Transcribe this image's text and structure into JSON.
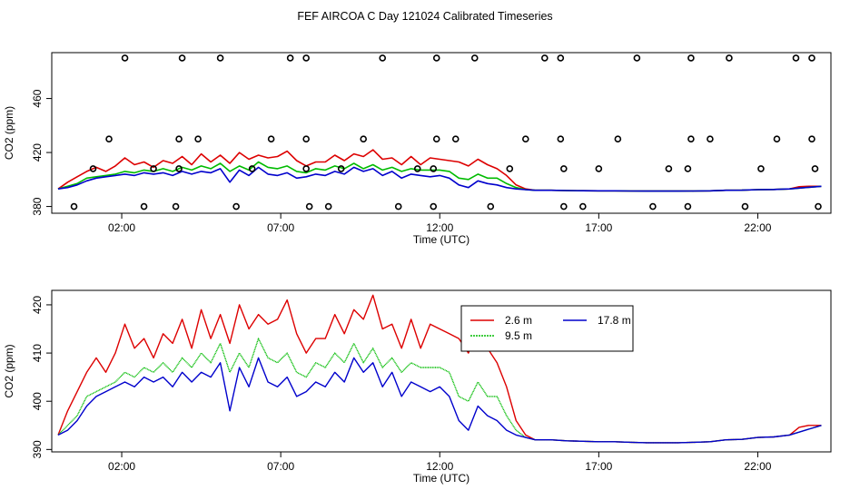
{
  "title": "FEF AIRCOA C  Day 121024  Calibrated Timeseries",
  "colors": {
    "red": "#dd0000",
    "green": "#00bb00",
    "blue": "#0000cc",
    "qc": "#000000"
  },
  "chart_data": [
    {
      "type": "line",
      "panel": "top",
      "xlabel": "Time (UTC)",
      "ylabel": "CO2 (ppm)",
      "x_ticks": [
        2,
        7,
        12,
        17,
        22
      ],
      "x_tick_labels": [
        "02:00",
        "07:00",
        "12:00",
        "17:00",
        "22:00"
      ],
      "xlim": [
        -0.2,
        24.3
      ],
      "ylim": [
        375,
        494
      ],
      "y_ticks": [
        380,
        420,
        460
      ],
      "y_tick_labels": [
        "380",
        "420",
        "460"
      ],
      "grid": false,
      "series": [
        {
          "name": "2.6 m",
          "color": "#dd0000",
          "ref": "red"
        },
        {
          "name": "9.5 m",
          "color": "#00bb00",
          "ref": "green"
        },
        {
          "name": "17.8 m",
          "color": "#0000cc",
          "ref": "blue"
        }
      ],
      "qc_flags": {
        "marker": "open-circle",
        "points": [
          [
            2.1,
            490
          ],
          [
            3.9,
            490
          ],
          [
            5.1,
            490
          ],
          [
            7.3,
            490
          ],
          [
            7.8,
            490
          ],
          [
            10.2,
            490
          ],
          [
            11.9,
            490
          ],
          [
            13.1,
            490
          ],
          [
            15.3,
            490
          ],
          [
            15.8,
            490
          ],
          [
            18.2,
            490
          ],
          [
            19.9,
            490
          ],
          [
            21.1,
            490
          ],
          [
            23.2,
            490
          ],
          [
            23.7,
            490
          ],
          [
            1.6,
            430
          ],
          [
            3.8,
            430
          ],
          [
            4.4,
            430
          ],
          [
            6.7,
            430
          ],
          [
            7.8,
            430
          ],
          [
            9.6,
            430
          ],
          [
            11.9,
            430
          ],
          [
            12.5,
            430
          ],
          [
            14.7,
            430
          ],
          [
            15.8,
            430
          ],
          [
            17.6,
            430
          ],
          [
            19.9,
            430
          ],
          [
            20.5,
            430
          ],
          [
            22.6,
            430
          ],
          [
            23.7,
            430
          ],
          [
            1.1,
            408
          ],
          [
            3.0,
            408
          ],
          [
            3.8,
            408
          ],
          [
            6.1,
            408
          ],
          [
            7.8,
            408
          ],
          [
            8.9,
            408
          ],
          [
            11.3,
            408
          ],
          [
            11.8,
            408
          ],
          [
            14.2,
            408
          ],
          [
            15.9,
            408
          ],
          [
            17.0,
            408
          ],
          [
            19.2,
            408
          ],
          [
            19.8,
            408
          ],
          [
            22.1,
            408
          ],
          [
            23.8,
            408
          ],
          [
            0.5,
            380
          ],
          [
            2.7,
            380
          ],
          [
            3.7,
            380
          ],
          [
            5.6,
            380
          ],
          [
            7.9,
            380
          ],
          [
            8.5,
            380
          ],
          [
            10.7,
            380
          ],
          [
            11.8,
            380
          ],
          [
            13.6,
            380
          ],
          [
            15.9,
            380
          ],
          [
            16.5,
            380
          ],
          [
            18.7,
            380
          ],
          [
            19.8,
            380
          ],
          [
            21.6,
            380
          ],
          [
            23.9,
            380
          ]
        ]
      }
    },
    {
      "type": "line",
      "panel": "bottom",
      "xlabel": "Time (UTC)",
      "ylabel": "CO2 (ppm)",
      "x_ticks": [
        2,
        7,
        12,
        17,
        22
      ],
      "x_tick_labels": [
        "02:00",
        "07:00",
        "12:00",
        "17:00",
        "22:00"
      ],
      "xlim": [
        -0.2,
        24.3
      ],
      "ylim": [
        389.5,
        423
      ],
      "y_ticks": [
        390,
        400,
        410,
        420
      ],
      "y_tick_labels": [
        "390",
        "400",
        "410",
        "420"
      ],
      "grid": false,
      "legend": {
        "location": "upper-middle",
        "entries": [
          {
            "label": "2.6 m",
            "color": "#dd0000"
          },
          {
            "label": "17.8 m",
            "color": "#0000cc"
          },
          {
            "label": "9.5 m",
            "color": "#00bb00",
            "style": "dotted"
          }
        ]
      },
      "series": [
        {
          "name": "2.6 m",
          "color": "#dd0000",
          "x": [
            0,
            0.3,
            0.6,
            0.9,
            1.2,
            1.5,
            1.8,
            2.1,
            2.4,
            2.7,
            3.0,
            3.3,
            3.6,
            3.9,
            4.2,
            4.5,
            4.8,
            5.1,
            5.4,
            5.7,
            6.0,
            6.3,
            6.6,
            6.9,
            7.2,
            7.5,
            7.8,
            8.1,
            8.4,
            8.7,
            9.0,
            9.3,
            9.6,
            9.9,
            10.2,
            10.5,
            10.8,
            11.1,
            11.4,
            11.7,
            12.0,
            12.3,
            12.6,
            12.9,
            13.2,
            13.5,
            13.8,
            14.1,
            14.4,
            14.7,
            15.0,
            15.5,
            16.0,
            16.5,
            17.0,
            17.5,
            18.0,
            18.5,
            19.0,
            19.5,
            20.0,
            20.5,
            21.0,
            21.5,
            22.0,
            22.5,
            23.0,
            23.3,
            23.6,
            24.0
          ],
          "values": [
            393,
            398,
            402,
            406,
            409,
            406,
            410,
            416,
            411,
            413,
            409,
            414,
            412,
            417,
            411,
            419,
            413,
            418,
            412,
            420,
            415,
            418,
            416,
            417,
            421,
            414,
            410,
            413,
            413,
            418,
            414,
            419,
            417,
            422,
            415,
            416,
            411,
            417,
            411,
            416,
            415,
            414,
            413,
            410,
            415,
            411,
            408,
            403,
            396,
            393,
            392,
            392,
            391.8,
            391.7,
            391.6,
            391.6,
            391.5,
            391.4,
            391.4,
            391.4,
            391.5,
            391.6,
            392.0,
            392.1,
            392.5,
            392.6,
            393.0,
            394.6,
            395.0,
            395.0
          ]
        },
        {
          "name": "9.5 m",
          "color": "#00bb00",
          "x": [
            0,
            0.3,
            0.6,
            0.9,
            1.2,
            1.5,
            1.8,
            2.1,
            2.4,
            2.7,
            3.0,
            3.3,
            3.6,
            3.9,
            4.2,
            4.5,
            4.8,
            5.1,
            5.4,
            5.7,
            6.0,
            6.3,
            6.6,
            6.9,
            7.2,
            7.5,
            7.8,
            8.1,
            8.4,
            8.7,
            9.0,
            9.3,
            9.6,
            9.9,
            10.2,
            10.5,
            10.8,
            11.1,
            11.4,
            11.7,
            12.0,
            12.3,
            12.6,
            12.9,
            13.2,
            13.5,
            13.8,
            14.1,
            14.4,
            14.7,
            15.0,
            15.5,
            16.0,
            16.5,
            17.0,
            17.5,
            18.0,
            18.5,
            19.0,
            19.5,
            20.0,
            20.5,
            21.0,
            21.5,
            22.0,
            22.5,
            23.0,
            23.3,
            23.6,
            24.0
          ],
          "values": [
            393,
            395,
            397,
            401,
            402,
            403,
            404,
            406,
            405,
            407,
            406,
            408,
            406,
            409,
            407,
            410,
            408,
            412,
            406,
            410,
            407,
            413,
            409,
            408,
            410,
            406,
            405,
            408,
            407,
            410,
            408,
            412,
            408,
            411,
            407,
            409,
            406,
            408,
            407,
            407,
            407,
            406,
            401,
            400,
            404,
            401,
            401,
            397,
            394,
            392.5,
            392,
            392,
            391.8,
            391.7,
            391.6,
            391.6,
            391.5,
            391.4,
            391.4,
            391.4,
            391.5,
            391.6,
            392.0,
            392.1,
            392.5,
            392.6,
            393.0,
            393.6,
            394.2,
            395.0
          ]
        },
        {
          "name": "17.8 m",
          "color": "#0000cc",
          "x": [
            0,
            0.3,
            0.6,
            0.9,
            1.2,
            1.5,
            1.8,
            2.1,
            2.4,
            2.7,
            3.0,
            3.3,
            3.6,
            3.9,
            4.2,
            4.5,
            4.8,
            5.1,
            5.4,
            5.7,
            6.0,
            6.3,
            6.6,
            6.9,
            7.2,
            7.5,
            7.8,
            8.1,
            8.4,
            8.7,
            9.0,
            9.3,
            9.6,
            9.9,
            10.2,
            10.5,
            10.8,
            11.1,
            11.4,
            11.7,
            12.0,
            12.3,
            12.6,
            12.9,
            13.2,
            13.5,
            13.8,
            14.1,
            14.4,
            14.7,
            15.0,
            15.5,
            16.0,
            16.5,
            17.0,
            17.5,
            18.0,
            18.5,
            19.0,
            19.5,
            20.0,
            20.5,
            21.0,
            21.5,
            22.0,
            22.5,
            23.0,
            23.3,
            23.6,
            24.0
          ],
          "values": [
            393,
            394,
            396,
            399,
            401,
            402,
            403,
            404,
            403,
            405,
            404,
            405,
            403,
            406,
            404,
            406,
            405,
            408,
            398,
            407,
            403,
            409,
            404,
            403,
            405,
            401,
            402,
            404,
            403,
            406,
            404,
            409,
            406,
            408,
            403,
            406,
            401,
            404,
            403,
            402,
            403,
            401,
            396,
            394,
            399,
            397,
            396,
            394,
            393,
            392.5,
            392,
            392,
            391.8,
            391.7,
            391.6,
            391.6,
            391.5,
            391.4,
            391.4,
            391.4,
            391.5,
            391.6,
            392.0,
            392.1,
            392.5,
            392.6,
            393.0,
            393.6,
            394.2,
            395.0
          ]
        }
      ]
    }
  ]
}
